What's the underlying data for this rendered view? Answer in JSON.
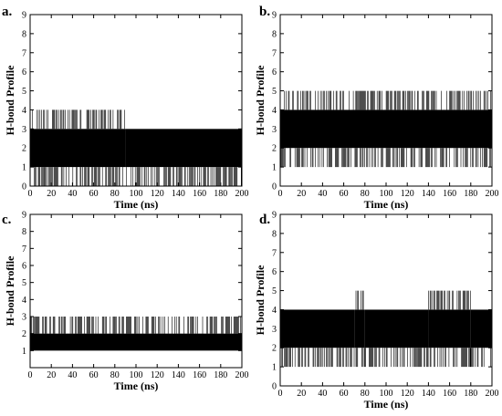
{
  "chart_data": [
    {
      "panel": "a.",
      "type": "line",
      "xlabel": "Time (ns)",
      "ylabel": "H-bond Profile",
      "xlim": [
        0,
        200
      ],
      "ylim": [
        0,
        9
      ],
      "xticks": [
        0,
        20,
        40,
        60,
        80,
        100,
        120,
        140,
        160,
        180,
        200
      ],
      "yticks": [
        0,
        1,
        2,
        3,
        4,
        5,
        6,
        7,
        8,
        9
      ],
      "grid": false,
      "segments": [
        {
          "from": 0,
          "to": 90,
          "dense_min": 1,
          "dense_max": 3,
          "spike_max": 4,
          "spike_min": 0
        },
        {
          "from": 90,
          "to": 200,
          "dense_min": 1,
          "dense_max": 3,
          "spike_max": 3,
          "spike_min": 0
        }
      ]
    },
    {
      "panel": "b.",
      "type": "line",
      "xlabel": "Time (ns)",
      "ylabel": "H-bond Profile",
      "xlim": [
        0,
        200
      ],
      "ylim": [
        0,
        9
      ],
      "xticks": [
        0,
        20,
        40,
        60,
        80,
        100,
        120,
        140,
        160,
        180,
        200
      ],
      "yticks": [
        0,
        1,
        2,
        3,
        4,
        5,
        6,
        7,
        8,
        9
      ],
      "grid": false,
      "segments": [
        {
          "from": 0,
          "to": 200,
          "dense_min": 2,
          "dense_max": 4,
          "spike_max": 5,
          "spike_min": 1
        }
      ]
    },
    {
      "panel": "c.",
      "type": "line",
      "xlabel": "Time (ns)",
      "ylabel": "H-bond Profile",
      "xlim": [
        0,
        200
      ],
      "ylim": [
        0,
        9
      ],
      "xticks": [
        0,
        20,
        40,
        60,
        80,
        100,
        120,
        140,
        160,
        180,
        200
      ],
      "yticks": [
        1,
        2,
        3,
        4,
        5,
        6,
        7,
        8,
        9
      ],
      "grid": false,
      "segments": [
        {
          "from": 0,
          "to": 200,
          "dense_min": 1,
          "dense_max": 2,
          "spike_max": 3,
          "spike_min": 1
        }
      ]
    },
    {
      "panel": "d.",
      "type": "line",
      "xlabel": "Time (ns)",
      "ylabel": "H-bond Profile",
      "xlim": [
        0,
        200
      ],
      "ylim": [
        0,
        9
      ],
      "xticks": [
        0,
        20,
        40,
        60,
        80,
        100,
        120,
        140,
        160,
        180,
        200
      ],
      "yticks": [
        0,
        1,
        2,
        3,
        4,
        5,
        6,
        7,
        8,
        9
      ],
      "grid": false,
      "segments": [
        {
          "from": 0,
          "to": 70,
          "dense_min": 2,
          "dense_max": 4,
          "spike_max": 4,
          "spike_min": 1
        },
        {
          "from": 70,
          "to": 80,
          "dense_min": 2,
          "dense_max": 4,
          "spike_max": 5,
          "spike_min": 1
        },
        {
          "from": 80,
          "to": 140,
          "dense_min": 2,
          "dense_max": 4,
          "spike_max": 4,
          "spike_min": 1
        },
        {
          "from": 140,
          "to": 180,
          "dense_min": 2,
          "dense_max": 4,
          "spike_max": 5,
          "spike_min": 1
        },
        {
          "from": 180,
          "to": 200,
          "dense_min": 2,
          "dense_max": 4,
          "spike_max": 4,
          "spike_min": 1
        }
      ]
    }
  ]
}
